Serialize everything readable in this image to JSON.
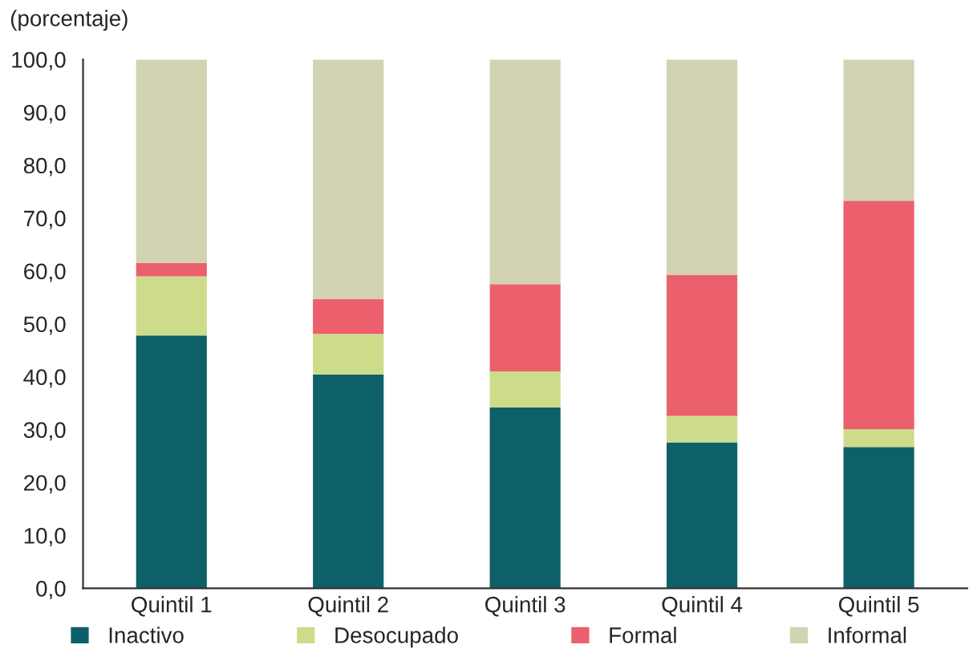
{
  "chart_data": {
    "type": "bar",
    "stacked": true,
    "ylabel": "(porcentaje)",
    "categories": [
      "Quintil 1",
      "Quintil 2",
      "Quintil 3",
      "Quintil 4",
      "Quintil 5"
    ],
    "series": [
      {
        "name": "Inactivo",
        "color": "#0e6068",
        "values": [
          47.8,
          40.4,
          34.2,
          27.6,
          26.7
        ]
      },
      {
        "name": "Desocupado",
        "color": "#cddc8a",
        "values": [
          11.2,
          7.7,
          6.8,
          5.0,
          3.4
        ]
      },
      {
        "name": "Formal",
        "color": "#ec5f6c",
        "values": [
          2.5,
          6.6,
          16.5,
          26.7,
          43.2
        ]
      },
      {
        "name": "Informal",
        "color": "#d1d3b3",
        "values": [
          38.5,
          45.3,
          42.5,
          40.7,
          26.7
        ]
      }
    ],
    "ylim": [
      0,
      100
    ],
    "yticks": [
      {
        "value": 0,
        "label": "0,0"
      },
      {
        "value": 10,
        "label": "10,0"
      },
      {
        "value": 20,
        "label": "20,0"
      },
      {
        "value": 30,
        "label": "30,0"
      },
      {
        "value": 40,
        "label": "40,0"
      },
      {
        "value": 50,
        "label": "50,0"
      },
      {
        "value": 60,
        "label": "60,0"
      },
      {
        "value": 70,
        "label": "70,0"
      },
      {
        "value": 80,
        "label": "80,0"
      },
      {
        "value": 90,
        "label": "90,0"
      },
      {
        "value": 100,
        "label": "100,0"
      }
    ],
    "grid": false,
    "legend": "bottom"
  }
}
